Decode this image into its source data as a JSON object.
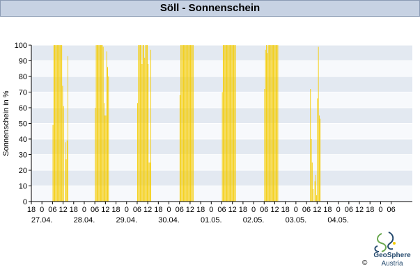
{
  "header": {
    "title": "Söll - Sonnenschein"
  },
  "branding": {
    "name": "GeoSphere",
    "sub": "Austria",
    "copyright": "©"
  },
  "colors": {
    "bar": "#f5cc00",
    "band_light": "#f7f9fc",
    "band_dark": "#e3e9f1",
    "axis": "#000000"
  },
  "chart_data": {
    "type": "bar",
    "title": "Söll - Sonnenschein",
    "ylabel": "Sonnenschein in %",
    "xlabel": "",
    "ylim": [
      0,
      100
    ],
    "yticks": [
      0,
      10,
      20,
      30,
      40,
      50,
      60,
      70,
      80,
      90,
      100
    ],
    "x_unit": "hours since 26.04. 18:00",
    "xlim": [
      0,
      216
    ],
    "x_hour_ticks": [
      "18",
      "0",
      "06",
      "12",
      "18",
      "0",
      "06",
      "12",
      "18",
      "0",
      "06",
      "12",
      "18",
      "0",
      "06",
      "12",
      "18",
      "0",
      "06",
      "12",
      "18",
      "0",
      "06",
      "12",
      "18",
      "0",
      "06",
      "12",
      "18",
      "0",
      "06",
      "12",
      "18",
      "0",
      "06"
    ],
    "date_labels": [
      "27.04.",
      "28.04.",
      "29.04.",
      "30.04.",
      "01.05.",
      "02.05.",
      "03.05.",
      "04.05."
    ],
    "grid": true,
    "bar_width_hours": 0.5,
    "series": [
      {
        "values": [
          [
            12,
            49
          ],
          [
            12.5,
            100
          ],
          [
            13,
            100
          ],
          [
            13.5,
            100
          ],
          [
            14,
            100
          ],
          [
            14.5,
            100
          ],
          [
            15,
            100
          ],
          [
            15.5,
            100
          ],
          [
            16,
            100
          ],
          [
            16.5,
            100
          ],
          [
            17,
            100
          ],
          [
            17.5,
            74
          ],
          [
            18,
            61
          ],
          [
            19,
            38
          ],
          [
            19.5,
            27
          ],
          [
            20,
            39
          ],
          [
            20.5,
            93
          ],
          [
            36,
            60
          ],
          [
            36.5,
            100
          ],
          [
            37,
            100
          ],
          [
            37.5,
            100
          ],
          [
            38,
            100
          ],
          [
            38.5,
            100
          ],
          [
            39,
            100
          ],
          [
            39.5,
            100
          ],
          [
            40,
            100
          ],
          [
            40.5,
            99
          ],
          [
            41,
            63
          ],
          [
            41.5,
            55
          ],
          [
            42,
            55
          ],
          [
            42.5,
            96
          ],
          [
            43,
            86
          ],
          [
            43.5,
            80
          ],
          [
            60,
            63
          ],
          [
            60.5,
            100
          ],
          [
            61,
            100
          ],
          [
            61.5,
            100
          ],
          [
            62,
            100
          ],
          [
            62.5,
            88
          ],
          [
            63,
            100
          ],
          [
            63.5,
            100
          ],
          [
            64,
            92
          ],
          [
            64.5,
            100
          ],
          [
            65,
            100
          ],
          [
            65.5,
            100
          ],
          [
            66,
            88
          ],
          [
            66.5,
            25
          ],
          [
            67,
            25
          ],
          [
            67.5,
            97
          ],
          [
            84,
            68
          ],
          [
            84.5,
            100
          ],
          [
            85,
            100
          ],
          [
            85.5,
            100
          ],
          [
            86,
            100
          ],
          [
            86.5,
            100
          ],
          [
            87,
            100
          ],
          [
            87.5,
            100
          ],
          [
            88,
            100
          ],
          [
            88.5,
            100
          ],
          [
            89,
            100
          ],
          [
            89.5,
            100
          ],
          [
            90,
            100
          ],
          [
            90.5,
            100
          ],
          [
            91,
            100
          ],
          [
            91.5,
            100
          ],
          [
            108,
            70
          ],
          [
            108.5,
            100
          ],
          [
            109,
            100
          ],
          [
            109.5,
            100
          ],
          [
            110,
            100
          ],
          [
            110.5,
            100
          ],
          [
            111,
            100
          ],
          [
            111.5,
            100
          ],
          [
            112,
            100
          ],
          [
            112.5,
            100
          ],
          [
            113,
            100
          ],
          [
            113.5,
            100
          ],
          [
            114,
            100
          ],
          [
            114.5,
            100
          ],
          [
            115,
            100
          ],
          [
            115.5,
            100
          ],
          [
            132,
            72
          ],
          [
            132.5,
            97
          ],
          [
            133,
            100
          ],
          [
            133.5,
            95
          ],
          [
            134,
            100
          ],
          [
            134.5,
            100
          ],
          [
            135,
            100
          ],
          [
            135.5,
            100
          ],
          [
            136,
            100
          ],
          [
            136.5,
            100
          ],
          [
            137,
            100
          ],
          [
            137.5,
            100
          ],
          [
            138,
            100
          ],
          [
            138.5,
            100
          ],
          [
            139,
            100
          ],
          [
            139.5,
            100
          ],
          [
            158,
            72
          ],
          [
            158.5,
            40
          ],
          [
            159,
            25
          ],
          [
            159.5,
            8
          ],
          [
            160.5,
            13
          ],
          [
            161,
            17
          ],
          [
            161.5,
            4
          ],
          [
            162,
            66
          ],
          [
            162.5,
            99
          ],
          [
            163,
            55
          ],
          [
            163.5,
            53
          ]
        ]
      }
    ]
  }
}
